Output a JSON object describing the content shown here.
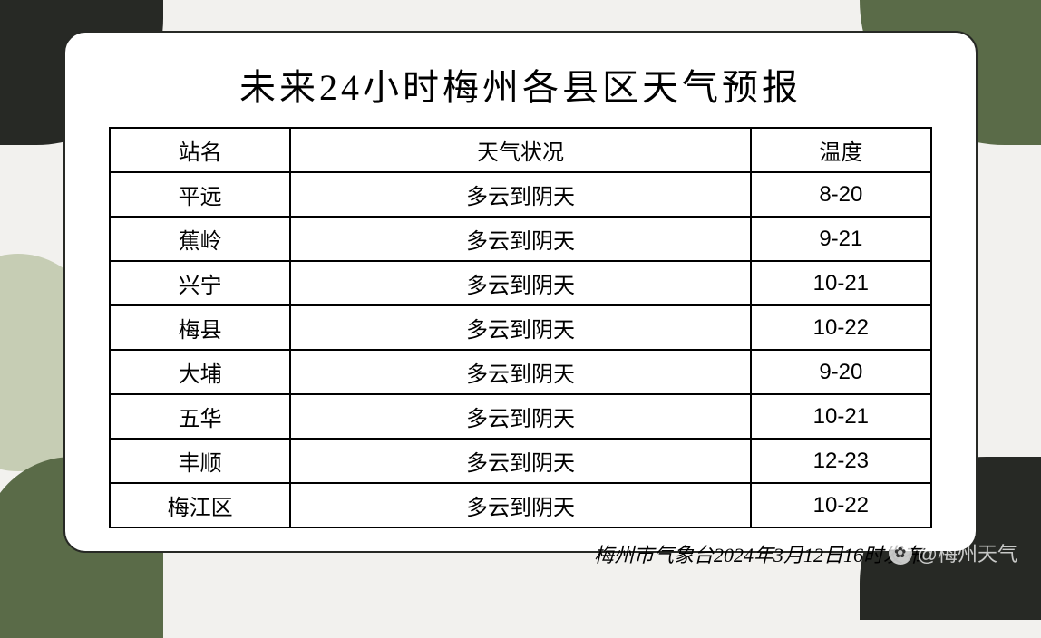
{
  "title": "未来24小时梅州各县区天气预报",
  "columns": [
    "站名",
    "天气状况",
    "温度"
  ],
  "rows": [
    {
      "station": "平远",
      "weather": "多云到阴天",
      "temp": "8-20"
    },
    {
      "station": "蕉岭",
      "weather": "多云到阴天",
      "temp": "9-21"
    },
    {
      "station": "兴宁",
      "weather": "多云到阴天",
      "temp": "10-21"
    },
    {
      "station": "梅县",
      "weather": "多云到阴天",
      "temp": "10-22"
    },
    {
      "station": "大埔",
      "weather": "多云到阴天",
      "temp": "9-20"
    },
    {
      "station": "五华",
      "weather": "多云到阴天",
      "temp": "10-21"
    },
    {
      "station": "丰顺",
      "weather": "多云到阴天",
      "temp": "12-23"
    },
    {
      "station": "梅江区",
      "weather": "多云到阴天",
      "temp": "10-22"
    }
  ],
  "footer": "梅州市气象台2024年3月12日16时发布",
  "watermark": "@梅州天气",
  "style": {
    "background_color": "#f2f1ee",
    "card_bg": "#ffffff",
    "card_border": "#272925",
    "table_border": "#000000",
    "shape_colors": {
      "dark": "#272925",
      "green": "#5a6b48",
      "light": "#c6cdb4"
    },
    "title_fontsize": 40,
    "cell_fontsize": 24,
    "footer_fontsize": 22,
    "column_widths_pct": [
      22,
      56,
      22
    ]
  }
}
